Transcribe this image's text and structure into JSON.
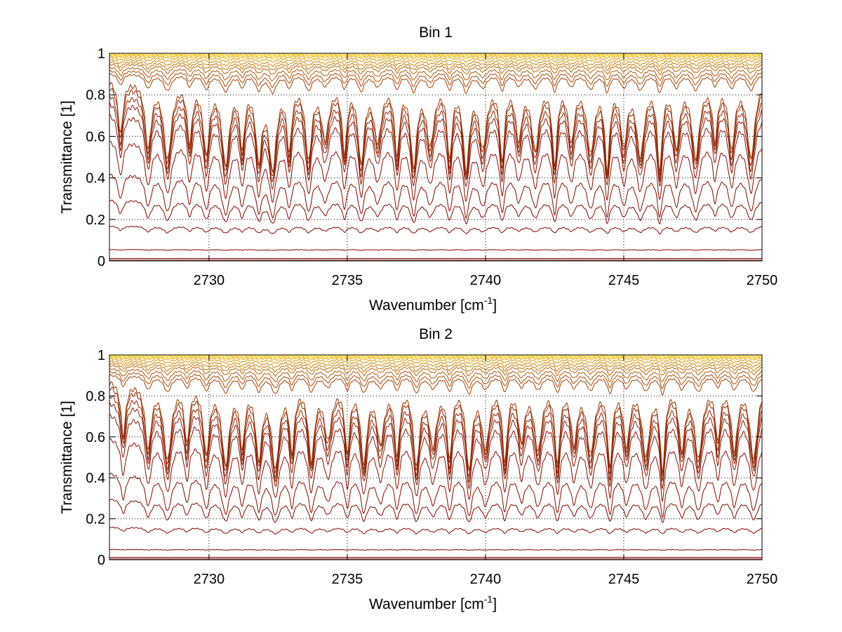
{
  "chart_data": [
    {
      "type": "line",
      "title": "Bin 1",
      "xlabel_base": "Wavenumber [cm",
      "xlabel_sup": "-1",
      "xlabel_tail": "]",
      "ylabel": "Transmittance [1]",
      "xlim": [
        2726.4,
        2750
      ],
      "ylim": [
        0,
        1
      ],
      "xticks": [
        2730,
        2735,
        2740,
        2745,
        2750
      ],
      "yticks": [
        0,
        0.2,
        0.4,
        0.6,
        0.8,
        1
      ],
      "ytick_labels": [
        "0",
        "0.2",
        "0.4",
        "0.6",
        "0.8",
        "1"
      ],
      "grid": true,
      "series_count": 22,
      "line_baselines": [
        0.004,
        0.012,
        0.055,
        0.17,
        0.3,
        0.43,
        0.59,
        0.72,
        0.78,
        0.82,
        0.86,
        0.885,
        0.905,
        0.92,
        0.935,
        0.95,
        0.96,
        0.97,
        0.98,
        0.988,
        0.993,
        0.997
      ],
      "absorption_lines": [
        2726.8,
        2727.8,
        2728.5,
        2729.3,
        2729.9,
        2730.6,
        2731.2,
        2731.8,
        2732.3,
        2732.9,
        2733.6,
        2734.2,
        2734.9,
        2735.5,
        2736.1,
        2736.8,
        2737.4,
        2738.0,
        2738.7,
        2739.3,
        2739.9,
        2740.6,
        2741.2,
        2741.8,
        2742.5,
        2743.1,
        2743.8,
        2744.4,
        2745.0,
        2745.6,
        2746.3,
        2746.9,
        2747.6,
        2748.3,
        2748.9,
        2749.6
      ],
      "line_color_range": [
        "#7a0000",
        "#ffd400"
      ]
    },
    {
      "type": "line",
      "title": "Bin 2",
      "xlabel_base": "Wavenumber [cm",
      "xlabel_sup": "-1",
      "xlabel_tail": "]",
      "ylabel": "Transmittance [1]",
      "xlim": [
        2726.4,
        2750
      ],
      "ylim": [
        0,
        1
      ],
      "xticks": [
        2730,
        2735,
        2740,
        2745,
        2750
      ],
      "yticks": [
        0,
        0.2,
        0.4,
        0.6,
        0.8,
        1
      ],
      "ytick_labels": [
        "0",
        "0.2",
        "0.4",
        "0.6",
        "0.8",
        "1"
      ],
      "grid": true,
      "series_count": 22,
      "line_baselines": [
        0.004,
        0.012,
        0.05,
        0.16,
        0.3,
        0.43,
        0.6,
        0.72,
        0.78,
        0.82,
        0.86,
        0.885,
        0.905,
        0.92,
        0.935,
        0.95,
        0.96,
        0.97,
        0.98,
        0.988,
        0.993,
        0.997
      ],
      "absorption_lines": [
        2726.9,
        2727.8,
        2728.5,
        2729.2,
        2729.9,
        2730.6,
        2731.2,
        2731.8,
        2732.4,
        2733.0,
        2733.7,
        2734.3,
        2735.0,
        2735.6,
        2736.2,
        2736.8,
        2737.5,
        2738.1,
        2738.7,
        2739.4,
        2740.0,
        2740.7,
        2741.3,
        2741.9,
        2742.6,
        2743.2,
        2743.8,
        2744.5,
        2745.1,
        2745.8,
        2746.4,
        2747.1,
        2747.7,
        2748.4,
        2749.0,
        2749.7
      ],
      "line_color_range": [
        "#7a0000",
        "#ffd400"
      ]
    }
  ]
}
